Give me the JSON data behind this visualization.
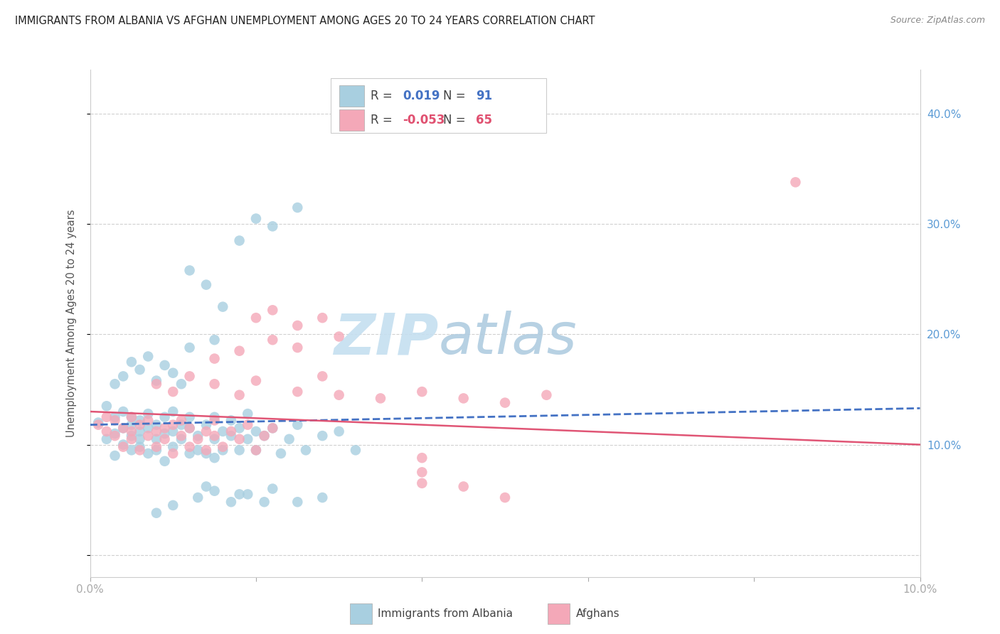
{
  "title": "IMMIGRANTS FROM ALBANIA VS AFGHAN UNEMPLOYMENT AMONG AGES 20 TO 24 YEARS CORRELATION CHART",
  "source": "Source: ZipAtlas.com",
  "ylabel": "Unemployment Among Ages 20 to 24 years",
  "xlim": [
    0.0,
    0.1
  ],
  "ylim": [
    -0.02,
    0.44
  ],
  "yticks": [
    0.0,
    0.1,
    0.2,
    0.3,
    0.4
  ],
  "ytick_labels": [
    "",
    "10.0%",
    "20.0%",
    "30.0%",
    "40.0%"
  ],
  "xticks": [
    0.0,
    0.02,
    0.04,
    0.06,
    0.08,
    0.1
  ],
  "xtick_labels": [
    "0.0%",
    "",
    "",
    "",
    "",
    "10.0%"
  ],
  "legend_r_albania": "0.019",
  "legend_n_albania": "91",
  "legend_r_afghan": "-0.053",
  "legend_n_afghan": "65",
  "color_albania": "#a8cfe0",
  "color_afghan": "#f4a8b8",
  "trendline_color_albania": "#4472c4",
  "trendline_color_afghan": "#e05575",
  "watermark_zip": "ZIP",
  "watermark_atlas": "atlas",
  "watermark_color_zip": "#c8dff0",
  "watermark_color_atlas": "#b8cfe8",
  "background_color": "#ffffff",
  "grid_color": "#d0d0d0",
  "albania_x": [
    0.001,
    0.002,
    0.002,
    0.003,
    0.003,
    0.003,
    0.004,
    0.004,
    0.004,
    0.005,
    0.005,
    0.005,
    0.005,
    0.006,
    0.006,
    0.006,
    0.006,
    0.007,
    0.007,
    0.007,
    0.008,
    0.008,
    0.008,
    0.009,
    0.009,
    0.009,
    0.01,
    0.01,
    0.01,
    0.011,
    0.011,
    0.012,
    0.012,
    0.012,
    0.013,
    0.013,
    0.014,
    0.014,
    0.015,
    0.015,
    0.015,
    0.016,
    0.016,
    0.017,
    0.017,
    0.018,
    0.018,
    0.019,
    0.019,
    0.02,
    0.02,
    0.021,
    0.022,
    0.023,
    0.024,
    0.025,
    0.026,
    0.028,
    0.03,
    0.032,
    0.003,
    0.004,
    0.005,
    0.006,
    0.007,
    0.008,
    0.009,
    0.01,
    0.011,
    0.012,
    0.014,
    0.016,
    0.012,
    0.015,
    0.018,
    0.02,
    0.022,
    0.025,
    0.008,
    0.01,
    0.013,
    0.015,
    0.017,
    0.019,
    0.022,
    0.025,
    0.028,
    0.014,
    0.018,
    0.021
  ],
  "albania_y": [
    0.12,
    0.135,
    0.105,
    0.11,
    0.125,
    0.09,
    0.115,
    0.1,
    0.13,
    0.118,
    0.095,
    0.108,
    0.125,
    0.112,
    0.098,
    0.122,
    0.105,
    0.115,
    0.092,
    0.128,
    0.105,
    0.118,
    0.095,
    0.11,
    0.125,
    0.085,
    0.112,
    0.098,
    0.13,
    0.105,
    0.118,
    0.092,
    0.115,
    0.125,
    0.108,
    0.095,
    0.118,
    0.092,
    0.105,
    0.125,
    0.088,
    0.112,
    0.095,
    0.108,
    0.122,
    0.095,
    0.115,
    0.105,
    0.128,
    0.112,
    0.095,
    0.108,
    0.115,
    0.092,
    0.105,
    0.118,
    0.095,
    0.108,
    0.112,
    0.095,
    0.155,
    0.162,
    0.175,
    0.168,
    0.18,
    0.158,
    0.172,
    0.165,
    0.155,
    0.258,
    0.245,
    0.225,
    0.188,
    0.195,
    0.285,
    0.305,
    0.298,
    0.315,
    0.038,
    0.045,
    0.052,
    0.058,
    0.048,
    0.055,
    0.06,
    0.048,
    0.052,
    0.062,
    0.055,
    0.048
  ],
  "afghan_x": [
    0.001,
    0.002,
    0.002,
    0.003,
    0.003,
    0.004,
    0.004,
    0.005,
    0.005,
    0.005,
    0.006,
    0.006,
    0.007,
    0.007,
    0.008,
    0.008,
    0.009,
    0.009,
    0.01,
    0.01,
    0.011,
    0.011,
    0.012,
    0.012,
    0.013,
    0.014,
    0.014,
    0.015,
    0.015,
    0.016,
    0.017,
    0.018,
    0.019,
    0.02,
    0.021,
    0.022,
    0.008,
    0.01,
    0.012,
    0.015,
    0.018,
    0.02,
    0.025,
    0.028,
    0.03,
    0.035,
    0.04,
    0.045,
    0.05,
    0.055,
    0.02,
    0.022,
    0.025,
    0.028,
    0.03,
    0.025,
    0.022,
    0.018,
    0.015,
    0.04,
    0.045,
    0.05,
    0.04,
    0.04,
    0.085
  ],
  "afghan_y": [
    0.118,
    0.112,
    0.125,
    0.108,
    0.122,
    0.115,
    0.098,
    0.112,
    0.125,
    0.105,
    0.118,
    0.095,
    0.108,
    0.122,
    0.112,
    0.098,
    0.115,
    0.105,
    0.118,
    0.092,
    0.108,
    0.122,
    0.098,
    0.115,
    0.105,
    0.112,
    0.095,
    0.108,
    0.122,
    0.098,
    0.112,
    0.105,
    0.118,
    0.095,
    0.108,
    0.115,
    0.155,
    0.148,
    0.162,
    0.155,
    0.145,
    0.158,
    0.148,
    0.162,
    0.145,
    0.142,
    0.148,
    0.142,
    0.138,
    0.145,
    0.215,
    0.222,
    0.208,
    0.215,
    0.198,
    0.188,
    0.195,
    0.185,
    0.178,
    0.075,
    0.062,
    0.052,
    0.088,
    0.065,
    0.338
  ]
}
